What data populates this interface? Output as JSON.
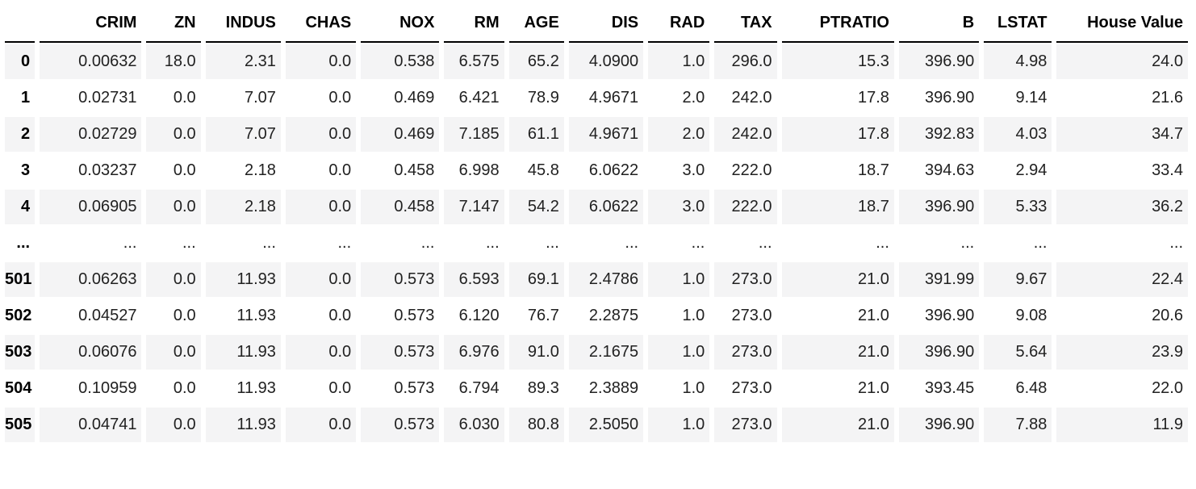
{
  "table": {
    "index_header": "",
    "columns": [
      "CRIM",
      "ZN",
      "INDUS",
      "CHAS",
      "NOX",
      "RM",
      "AGE",
      "DIS",
      "RAD",
      "TAX",
      "PTRATIO",
      "B",
      "LSTAT",
      "House Value"
    ],
    "rows": [
      {
        "index": "0",
        "values": [
          "0.00632",
          "18.0",
          "2.31",
          "0.0",
          "0.538",
          "6.575",
          "65.2",
          "4.0900",
          "1.0",
          "296.0",
          "15.3",
          "396.90",
          "4.98",
          "24.0"
        ]
      },
      {
        "index": "1",
        "values": [
          "0.02731",
          "0.0",
          "7.07",
          "0.0",
          "0.469",
          "6.421",
          "78.9",
          "4.9671",
          "2.0",
          "242.0",
          "17.8",
          "396.90",
          "9.14",
          "21.6"
        ]
      },
      {
        "index": "2",
        "values": [
          "0.02729",
          "0.0",
          "7.07",
          "0.0",
          "0.469",
          "7.185",
          "61.1",
          "4.9671",
          "2.0",
          "242.0",
          "17.8",
          "392.83",
          "4.03",
          "34.7"
        ]
      },
      {
        "index": "3",
        "values": [
          "0.03237",
          "0.0",
          "2.18",
          "0.0",
          "0.458",
          "6.998",
          "45.8",
          "6.0622",
          "3.0",
          "222.0",
          "18.7",
          "394.63",
          "2.94",
          "33.4"
        ]
      },
      {
        "index": "4",
        "values": [
          "0.06905",
          "0.0",
          "2.18",
          "0.0",
          "0.458",
          "7.147",
          "54.2",
          "6.0622",
          "3.0",
          "222.0",
          "18.7",
          "396.90",
          "5.33",
          "36.2"
        ]
      },
      {
        "index": "...",
        "values": [
          "...",
          "...",
          "...",
          "...",
          "...",
          "...",
          "...",
          "...",
          "...",
          "...",
          "...",
          "...",
          "...",
          "..."
        ]
      },
      {
        "index": "501",
        "values": [
          "0.06263",
          "0.0",
          "11.93",
          "0.0",
          "0.573",
          "6.593",
          "69.1",
          "2.4786",
          "1.0",
          "273.0",
          "21.0",
          "391.99",
          "9.67",
          "22.4"
        ]
      },
      {
        "index": "502",
        "values": [
          "0.04527",
          "0.0",
          "11.93",
          "0.0",
          "0.573",
          "6.120",
          "76.7",
          "2.2875",
          "1.0",
          "273.0",
          "21.0",
          "396.90",
          "9.08",
          "20.6"
        ]
      },
      {
        "index": "503",
        "values": [
          "0.06076",
          "0.0",
          "11.93",
          "0.0",
          "0.573",
          "6.976",
          "91.0",
          "2.1675",
          "1.0",
          "273.0",
          "21.0",
          "396.90",
          "5.64",
          "23.9"
        ]
      },
      {
        "index": "504",
        "values": [
          "0.10959",
          "0.0",
          "11.93",
          "0.0",
          "0.573",
          "6.794",
          "89.3",
          "2.3889",
          "1.0",
          "273.0",
          "21.0",
          "393.45",
          "6.48",
          "22.0"
        ]
      },
      {
        "index": "505",
        "values": [
          "0.04741",
          "0.0",
          "11.93",
          "0.0",
          "0.573",
          "6.030",
          "80.8",
          "2.5050",
          "1.0",
          "273.0",
          "21.0",
          "396.90",
          "7.88",
          "11.9"
        ]
      }
    ],
    "colors": {
      "stripe": "#f4f4f5",
      "header_border": "#000000",
      "text": "#212121",
      "background": "#ffffff"
    }
  }
}
